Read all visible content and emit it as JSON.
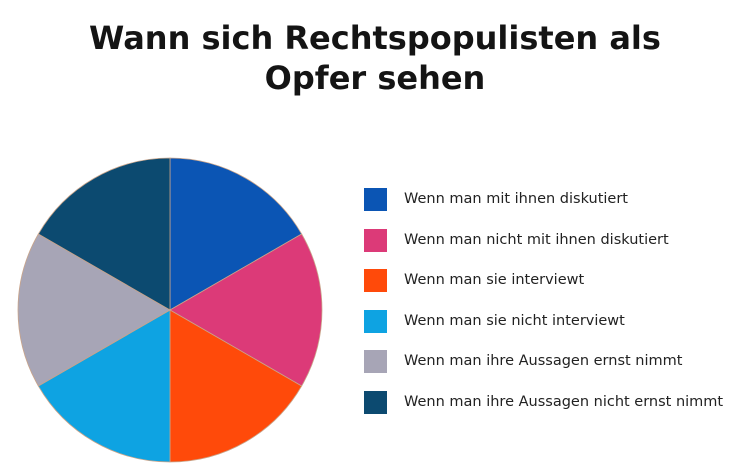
{
  "chart_data": {
    "type": "pie",
    "title_lines": [
      "Wann sich Rechtspopulisten als",
      "Opfer sehen"
    ],
    "categories": [
      "Wenn man mit ihnen diskutiert",
      "Wenn man nicht mit ihnen diskutiert",
      "Wenn man sie interviewt",
      "Wenn man sie nicht interviewt",
      "Wenn man ihre Aussagen ernst nimmt",
      "Wenn man ihre Aussagen nicht ernst nimmt"
    ],
    "values": [
      16.67,
      16.67,
      16.67,
      16.67,
      16.67,
      16.67
    ],
    "colors": [
      "#0b55b4",
      "#dc3a78",
      "#ff4a0a",
      "#0ea3e2",
      "#a7a5b6",
      "#0c4a70"
    ],
    "legend_position": "right"
  }
}
